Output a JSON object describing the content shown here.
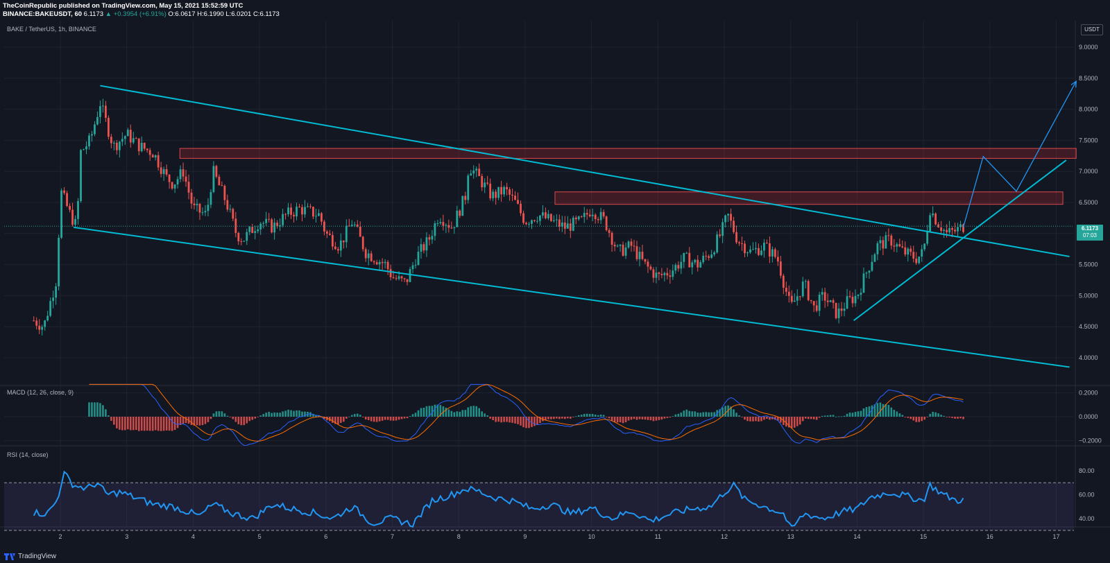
{
  "header": {
    "line1": "TheCoinRepublic published on TradingView.com, May 15, 2021 15:52:59 UTC",
    "symbol": "BINANCE:BAKEUSDT, 60",
    "last": "6.1173",
    "change": "▲ +0.3954 (+6.91%)",
    "ohlc": "O:6.0617 H:6.1990 L:6.0201 C:6.1173"
  },
  "symbol_label": "BAKE / TetherUS, 1h, BINANCE",
  "currency": "USDT",
  "price_tag": {
    "price": "6.1173",
    "countdown": "07:03"
  },
  "macd_label": "MACD (12, 26, close, 9)",
  "rsi_label": "RSI (14, close)",
  "footer": {
    "brand": "TradingView"
  },
  "colors": {
    "background": "#131722",
    "up": "#26a69a",
    "down": "#ef5350",
    "trendline": "#00bcd4",
    "projection": "#2196f3",
    "zone": "#b22833",
    "macd": "#2962ff",
    "signal": "#ff6d00",
    "rsi": "#2196f3",
    "rsi_band": "#7e57c2"
  },
  "chart_data": [
    {
      "type": "candlestick",
      "title": "BAKE / TetherUS, 1h, BINANCE",
      "y_ticks": [
        "4.0000",
        "4.5000",
        "5.0000",
        "5.5000",
        "6.0000",
        "6.5000",
        "7.0000",
        "7.5000",
        "8.0000",
        "8.5000",
        "9.0000"
      ],
      "x_ticks": [
        "2",
        "3",
        "4",
        "5",
        "6",
        "7",
        "8",
        "9",
        "10",
        "11",
        "12",
        "13",
        "14",
        "15",
        "16",
        "17"
      ],
      "ylim": [
        3.6,
        9.3
      ],
      "last_price": 6.1173,
      "anchors": [
        [
          1.6,
          4.6
        ],
        [
          1.75,
          4.5
        ],
        [
          1.95,
          5.3
        ],
        [
          2.0,
          6.7
        ],
        [
          2.15,
          6.3
        ],
        [
          2.25,
          6.1
        ],
        [
          2.3,
          7.3
        ],
        [
          2.45,
          7.5
        ],
        [
          2.6,
          8.1
        ],
        [
          2.8,
          7.4
        ],
        [
          3.0,
          7.6
        ],
        [
          3.2,
          7.4
        ],
        [
          3.4,
          7.3
        ],
        [
          3.6,
          6.9
        ],
        [
          3.7,
          6.8
        ],
        [
          3.85,
          7.0
        ],
        [
          4.0,
          6.4
        ],
        [
          4.2,
          6.3
        ],
        [
          4.3,
          7.0
        ],
        [
          4.5,
          6.5
        ],
        [
          4.65,
          6.0
        ],
        [
          4.75,
          5.9
        ],
        [
          5.0,
          6.2
        ],
        [
          5.2,
          6.1
        ],
        [
          5.4,
          6.3
        ],
        [
          5.6,
          6.4
        ],
        [
          5.9,
          6.3
        ],
        [
          6.0,
          6.0
        ],
        [
          6.2,
          5.8
        ],
        [
          6.4,
          6.2
        ],
        [
          6.6,
          5.7
        ],
        [
          6.9,
          5.5
        ],
        [
          7.0,
          5.3
        ],
        [
          7.2,
          5.2
        ],
        [
          7.35,
          5.6
        ],
        [
          7.55,
          5.9
        ],
        [
          7.7,
          6.3
        ],
        [
          7.9,
          6.1
        ],
        [
          8.1,
          6.6
        ],
        [
          8.15,
          7.1
        ],
        [
          8.3,
          6.9
        ],
        [
          8.5,
          6.6
        ],
        [
          8.7,
          6.7
        ],
        [
          8.85,
          6.5
        ],
        [
          9.0,
          6.2
        ],
        [
          9.2,
          6.3
        ],
        [
          9.4,
          6.2
        ],
        [
          9.6,
          6.1
        ],
        [
          9.85,
          6.2
        ],
        [
          10.0,
          6.4
        ],
        [
          10.2,
          6.2
        ],
        [
          10.4,
          5.7
        ],
        [
          10.6,
          5.8
        ],
        [
          10.8,
          5.5
        ],
        [
          11.0,
          5.3
        ],
        [
          11.2,
          5.4
        ],
        [
          11.4,
          5.6
        ],
        [
          11.6,
          5.5
        ],
        [
          11.8,
          5.7
        ],
        [
          11.95,
          6.0
        ],
        [
          12.05,
          6.3
        ],
        [
          12.2,
          5.9
        ],
        [
          12.4,
          5.7
        ],
        [
          12.6,
          5.8
        ],
        [
          12.8,
          5.6
        ],
        [
          12.9,
          5.2
        ],
        [
          13.0,
          4.8
        ],
        [
          13.2,
          5.2
        ],
        [
          13.35,
          4.8
        ],
        [
          13.5,
          5.0
        ],
        [
          13.7,
          4.7
        ],
        [
          13.85,
          4.9
        ],
        [
          14.0,
          5.0
        ],
        [
          14.15,
          5.4
        ],
        [
          14.3,
          5.8
        ],
        [
          14.5,
          5.9
        ],
        [
          14.7,
          5.7
        ],
        [
          14.9,
          5.6
        ],
        [
          15.0,
          5.7
        ],
        [
          15.1,
          6.4
        ],
        [
          15.2,
          6.2
        ],
        [
          15.35,
          6.0
        ],
        [
          15.5,
          6.05
        ],
        [
          15.6,
          6.1173
        ]
      ],
      "zones": [
        {
          "x": [
            3.8,
            17.3
          ],
          "y": [
            7.21,
            7.37
          ]
        },
        {
          "x": [
            9.45,
            17.1
          ],
          "y": [
            6.47,
            6.67
          ]
        }
      ],
      "trendlines": [
        {
          "from": [
            2.6,
            8.38
          ],
          "to": [
            17.2,
            5.63
          ]
        },
        {
          "from": [
            2.2,
            6.1
          ],
          "to": [
            17.2,
            3.85
          ]
        },
        {
          "from": [
            13.95,
            4.6
          ],
          "to": [
            17.15,
            7.18
          ]
        }
      ],
      "projection": [
        [
          15.6,
          6.1
        ],
        [
          15.9,
          7.24
        ],
        [
          16.4,
          6.68
        ],
        [
          17.3,
          8.45
        ]
      ]
    },
    {
      "type": "bar+line",
      "title": "MACD (12, 26, close, 9)",
      "y_ticks": [
        "0.2000",
        "0.0000",
        "−0.2000"
      ],
      "ylim": [
        -0.25,
        0.27
      ]
    },
    {
      "type": "line",
      "title": "RSI (14, close)",
      "y_ticks": [
        "80.00",
        "60.00",
        "40.00"
      ],
      "band": [
        30,
        70
      ],
      "ylim": [
        25,
        85
      ],
      "anchors": [
        [
          1.6,
          45
        ],
        [
          1.8,
          44
        ],
        [
          1.95,
          55
        ],
        [
          2.05,
          78
        ],
        [
          2.2,
          68
        ],
        [
          2.4,
          65
        ],
        [
          2.55,
          70
        ],
        [
          2.7,
          60
        ],
        [
          2.9,
          62
        ],
        [
          3.1,
          58
        ],
        [
          3.4,
          52
        ],
        [
          3.7,
          50
        ],
        [
          3.9,
          46
        ],
        [
          4.1,
          42
        ],
        [
          4.3,
          52
        ],
        [
          4.6,
          44
        ],
        [
          4.9,
          40
        ],
        [
          5.2,
          52
        ],
        [
          5.5,
          48
        ],
        [
          5.8,
          45
        ],
        [
          6.1,
          40
        ],
        [
          6.4,
          50
        ],
        [
          6.7,
          36
        ],
        [
          7.0,
          40
        ],
        [
          7.3,
          35
        ],
        [
          7.6,
          55
        ],
        [
          7.9,
          60
        ],
        [
          8.1,
          65
        ],
        [
          8.3,
          63
        ],
        [
          8.5,
          58
        ],
        [
          8.8,
          55
        ],
        [
          9.1,
          48
        ],
        [
          9.4,
          52
        ],
        [
          9.7,
          44
        ],
        [
          10.0,
          49
        ],
        [
          10.3,
          40
        ],
        [
          10.6,
          46
        ],
        [
          10.9,
          38
        ],
        [
          11.2,
          44
        ],
        [
          11.5,
          48
        ],
        [
          11.8,
          50
        ],
        [
          12.0,
          62
        ],
        [
          12.15,
          68
        ],
        [
          12.3,
          56
        ],
        [
          12.6,
          50
        ],
        [
          12.9,
          44
        ],
        [
          13.0,
          30
        ],
        [
          13.2,
          44
        ],
        [
          13.5,
          40
        ],
        [
          13.8,
          46
        ],
        [
          14.0,
          48
        ],
        [
          14.2,
          58
        ],
        [
          14.5,
          62
        ],
        [
          14.8,
          58
        ],
        [
          15.0,
          55
        ],
        [
          15.1,
          68
        ],
        [
          15.3,
          60
        ],
        [
          15.5,
          55
        ],
        [
          15.6,
          56
        ]
      ]
    }
  ]
}
